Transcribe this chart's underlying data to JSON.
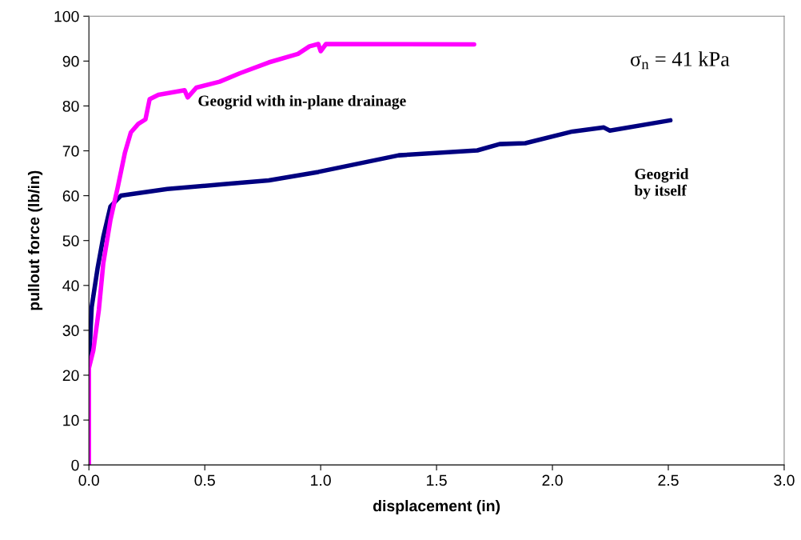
{
  "chart_data": {
    "type": "line",
    "xlabel": "displacement (in)",
    "ylabel": "pullout force (lb/in)",
    "xlim": [
      0,
      3
    ],
    "ylim": [
      0,
      100
    ],
    "xticks": [
      {
        "value": 0,
        "label": "0.0"
      },
      0.5,
      {
        "value": 1,
        "label": "1.0"
      },
      1.5,
      {
        "value": 2,
        "label": "2.0"
      },
      2.5,
      {
        "value": 3,
        "label": "3.0"
      }
    ],
    "yticks": [
      0,
      10,
      20,
      30,
      40,
      50,
      60,
      70,
      80,
      90,
      100
    ],
    "grid": false,
    "legend": false,
    "marker": "none",
    "line_style": "solid",
    "annotations": [
      "σ$_{n}$ = 41 kPa"
    ],
    "series": [
      {
        "name": "Geogrid\nby itself",
        "color": "#000080",
        "x": [
          0,
          0.012,
          0.037,
          0.062,
          0.093,
          0.138,
          0.338,
          0.59,
          0.776,
          0.99,
          1.337,
          1.676,
          1.772,
          1.883,
          2.086,
          2.222,
          2.248,
          2.509
        ],
        "values": [
          22.3,
          35.2,
          43.7,
          50.8,
          57.6,
          60.0,
          61.5,
          62.6,
          63.4,
          65.3,
          69.0,
          70.1,
          71.5,
          71.7,
          74.3,
          75.2,
          74.5,
          76.8
        ]
      },
      {
        "name": "Geogrid with in-plane drainage",
        "color": "#ff00ff",
        "x": [
          0,
          0,
          0.019,
          0.043,
          0.062,
          0.093,
          0.124,
          0.155,
          0.181,
          0.213,
          0.244,
          0.262,
          0.3,
          0.413,
          0.426,
          0.464,
          0.564,
          0.652,
          0.776,
          0.902,
          0.952,
          0.99,
          1.0,
          1.023,
          1.662
        ],
        "values": [
          0,
          21.6,
          25.5,
          34.6,
          44.9,
          54.6,
          61.8,
          69.5,
          74.1,
          76.0,
          77.0,
          81.5,
          82.5,
          83.5,
          81.9,
          84.1,
          85.4,
          87.3,
          89.7,
          91.6,
          93.3,
          93.8,
          92.2,
          93.8,
          93.7
        ]
      }
    ]
  }
}
